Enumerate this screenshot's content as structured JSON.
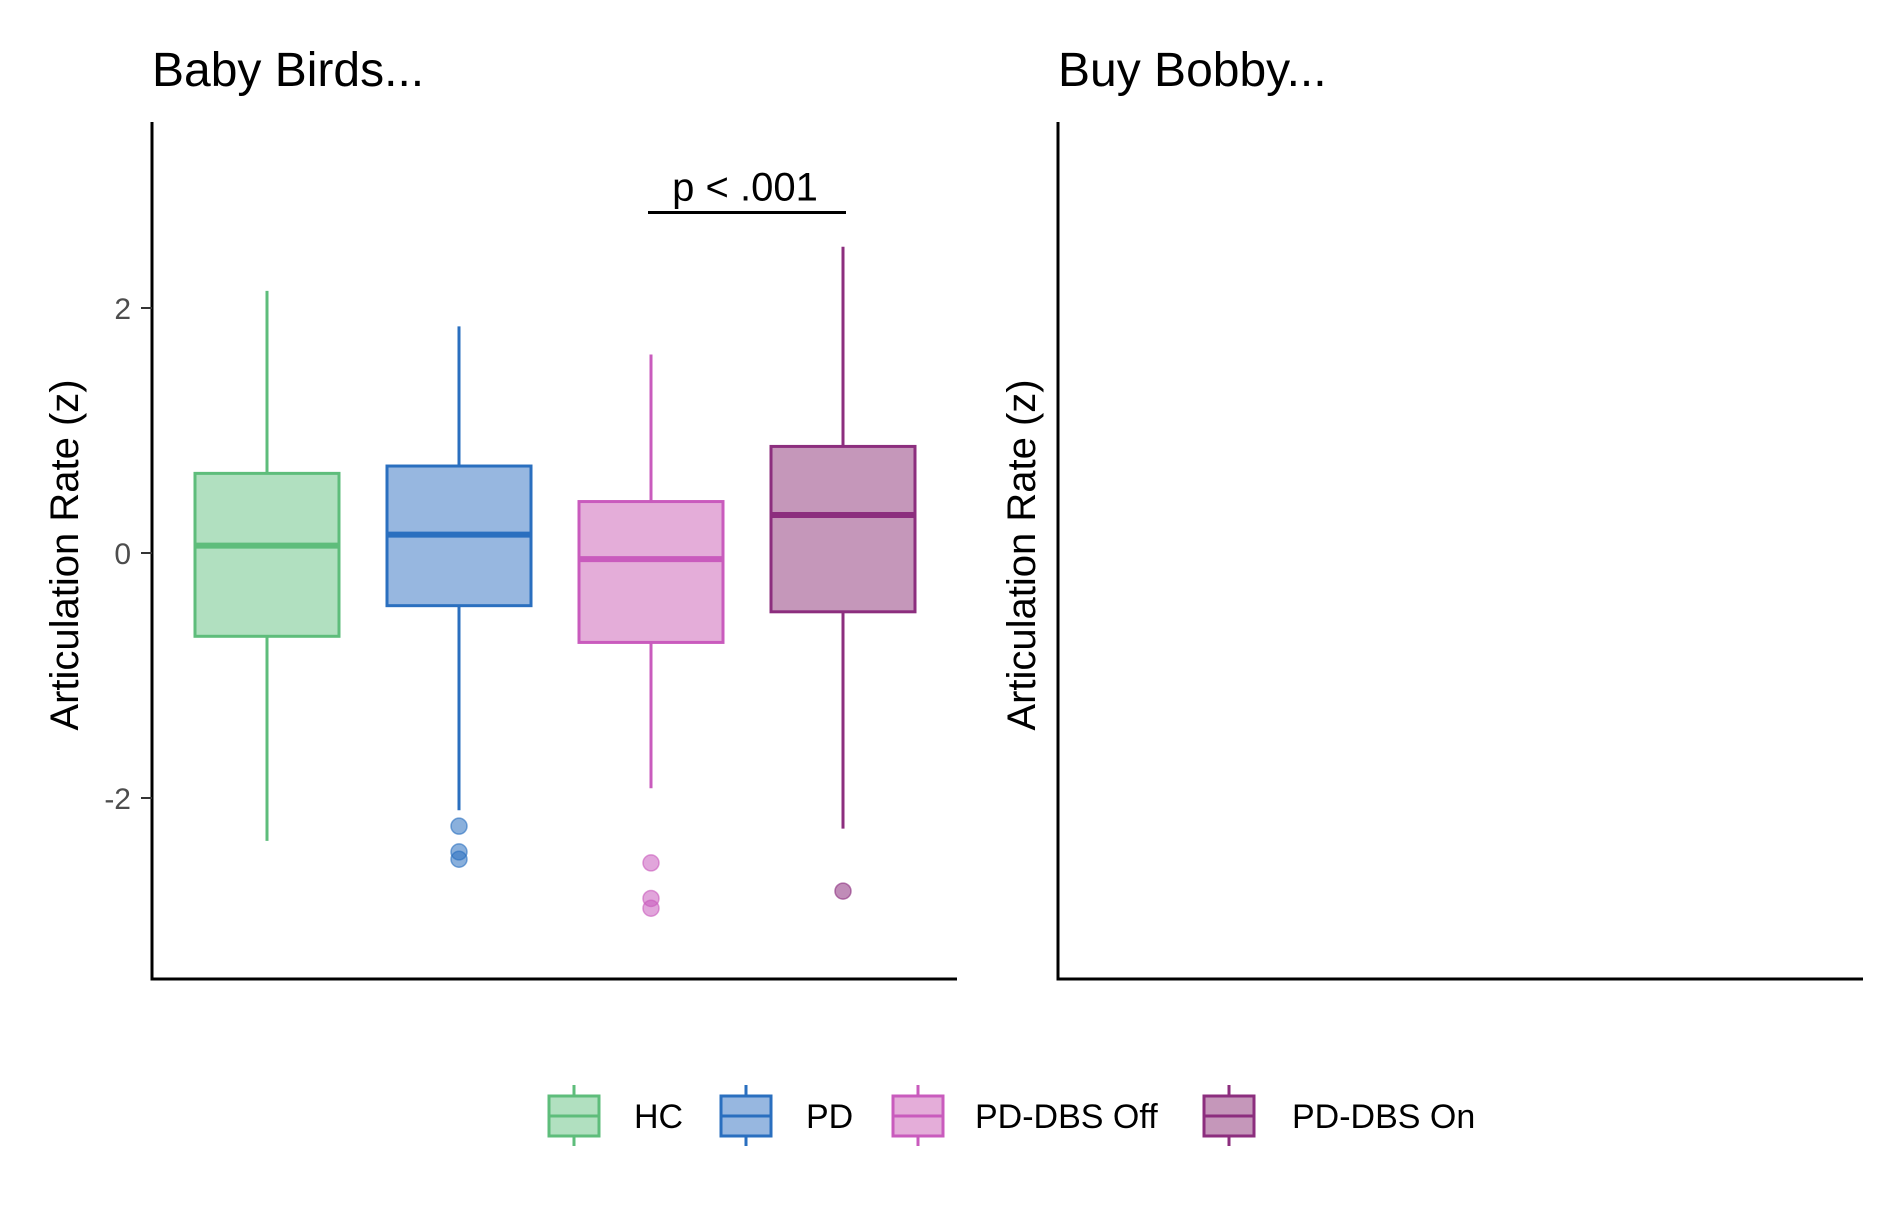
{
  "chart_data": [
    {
      "type": "box",
      "title": "Baby Birds...",
      "ylabel": "Articulation Rate (z)",
      "ylim": [
        -3.5,
        3.5
      ],
      "yticks": [
        -2,
        0,
        2
      ],
      "ytick_labels": [
        "-2",
        "0",
        "2"
      ],
      "groups": [
        {
          "name": "HC",
          "whisker_low": -2.35,
          "q1": -0.68,
          "median": 0.06,
          "q3": 0.65,
          "whisker_high": 2.14,
          "outliers": []
        },
        {
          "name": "PD",
          "whisker_low": -2.1,
          "q1": -0.43,
          "median": 0.15,
          "q3": 0.71,
          "whisker_high": 1.85,
          "outliers": [
            -2.23,
            -2.44,
            -2.5
          ]
        },
        {
          "name": "PD-DBS Off",
          "whisker_low": -1.92,
          "q1": -0.73,
          "median": -0.05,
          "q3": 0.42,
          "whisker_high": 1.62,
          "outliers": [
            -2.53,
            -2.82,
            -2.9
          ]
        },
        {
          "name": "PD-DBS On",
          "whisker_low": -2.25,
          "q1": -0.48,
          "median": 0.31,
          "q3": 0.87,
          "whisker_high": 2.5,
          "outliers": [
            -2.76
          ]
        }
      ],
      "annotation": {
        "text": "p < .001",
        "from_group": 2,
        "to_group": 3,
        "y": 2.78
      }
    },
    {
      "type": "box",
      "title": "Buy Bobby...",
      "ylabel": "Articulation Rate (z)",
      "groups": []
    }
  ],
  "legend": {
    "position": "bottom",
    "items": [
      {
        "label": "HC",
        "stroke": "#5ebd7b",
        "fill": "#b1e0c0"
      },
      {
        "label": "PD",
        "stroke": "#2a6fbf",
        "fill": "#97b7e0"
      },
      {
        "label": "PD-DBS Off",
        "stroke": "#c95bbd",
        "fill": "#e4add9"
      },
      {
        "label": "PD-DBS On",
        "stroke": "#8c2e7e",
        "fill": "#c597ba"
      }
    ]
  }
}
